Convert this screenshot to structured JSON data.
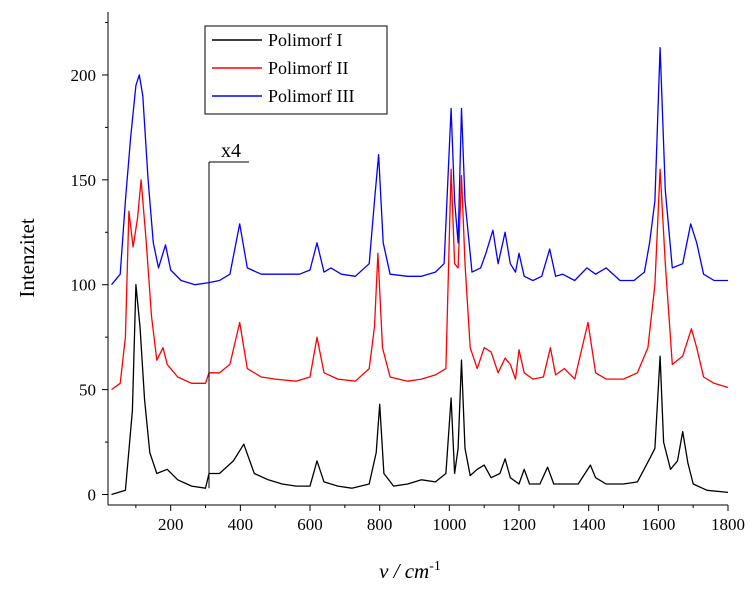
{
  "chart_data": {
    "type": "line",
    "title": "",
    "xlabel": "ν / cm",
    "xlabel_sup": "-1",
    "ylabel": "Intenzitet",
    "xlim": [
      20,
      1800
    ],
    "ylim": [
      -5,
      230
    ],
    "xticks": [
      200,
      400,
      600,
      800,
      1000,
      1200,
      1400,
      1600,
      1800
    ],
    "yticks": [
      0,
      50,
      100,
      150,
      200
    ],
    "grid": false,
    "legend_position": "top-left",
    "annotation": {
      "text": "x4",
      "x": 310
    },
    "series": [
      {
        "name": "Polimorf I",
        "color": "#000000",
        "points": [
          [
            30,
            0
          ],
          [
            70,
            2
          ],
          [
            90,
            40
          ],
          [
            100,
            100
          ],
          [
            112,
            80
          ],
          [
            125,
            45
          ],
          [
            140,
            20
          ],
          [
            160,
            10
          ],
          [
            190,
            12
          ],
          [
            220,
            7
          ],
          [
            260,
            4
          ],
          [
            300,
            3
          ],
          [
            310,
            10
          ],
          [
            340,
            10
          ],
          [
            380,
            16
          ],
          [
            410,
            24
          ],
          [
            440,
            10
          ],
          [
            480,
            7
          ],
          [
            520,
            5
          ],
          [
            560,
            4
          ],
          [
            600,
            4
          ],
          [
            620,
            16
          ],
          [
            640,
            6
          ],
          [
            680,
            4
          ],
          [
            720,
            3
          ],
          [
            770,
            5
          ],
          [
            790,
            20
          ],
          [
            800,
            43
          ],
          [
            812,
            10
          ],
          [
            840,
            4
          ],
          [
            880,
            5
          ],
          [
            920,
            7
          ],
          [
            960,
            6
          ],
          [
            990,
            10
          ],
          [
            1005,
            46
          ],
          [
            1015,
            10
          ],
          [
            1025,
            22
          ],
          [
            1035,
            64
          ],
          [
            1045,
            22
          ],
          [
            1060,
            9
          ],
          [
            1080,
            12
          ],
          [
            1100,
            14
          ],
          [
            1120,
            8
          ],
          [
            1145,
            10
          ],
          [
            1160,
            17
          ],
          [
            1175,
            8
          ],
          [
            1200,
            5
          ],
          [
            1215,
            12
          ],
          [
            1230,
            5
          ],
          [
            1260,
            5
          ],
          [
            1282,
            13
          ],
          [
            1300,
            5
          ],
          [
            1340,
            5
          ],
          [
            1370,
            5
          ],
          [
            1405,
            14
          ],
          [
            1420,
            8
          ],
          [
            1450,
            5
          ],
          [
            1500,
            5
          ],
          [
            1540,
            6
          ],
          [
            1575,
            17
          ],
          [
            1590,
            22
          ],
          [
            1605,
            66
          ],
          [
            1615,
            25
          ],
          [
            1635,
            12
          ],
          [
            1655,
            16
          ],
          [
            1670,
            30
          ],
          [
            1685,
            15
          ],
          [
            1700,
            5
          ],
          [
            1740,
            2
          ],
          [
            1800,
            1
          ]
        ]
      },
      {
        "name": "Polimorf II",
        "color": "#ff0000",
        "points": [
          [
            30,
            50
          ],
          [
            55,
            53
          ],
          [
            70,
            75
          ],
          [
            80,
            135
          ],
          [
            92,
            118
          ],
          [
            105,
            132
          ],
          [
            115,
            150
          ],
          [
            130,
            120
          ],
          [
            145,
            85
          ],
          [
            160,
            64
          ],
          [
            178,
            70
          ],
          [
            190,
            62
          ],
          [
            220,
            56
          ],
          [
            260,
            53
          ],
          [
            300,
            53
          ],
          [
            310,
            58
          ],
          [
            340,
            58
          ],
          [
            370,
            62
          ],
          [
            398,
            82
          ],
          [
            420,
            60
          ],
          [
            460,
            56
          ],
          [
            500,
            55
          ],
          [
            560,
            54
          ],
          [
            600,
            56
          ],
          [
            620,
            75
          ],
          [
            640,
            58
          ],
          [
            680,
            55
          ],
          [
            730,
            54
          ],
          [
            770,
            60
          ],
          [
            785,
            80
          ],
          [
            795,
            115
          ],
          [
            808,
            70
          ],
          [
            830,
            56
          ],
          [
            880,
            54
          ],
          [
            920,
            55
          ],
          [
            960,
            57
          ],
          [
            990,
            60
          ],
          [
            1005,
            155
          ],
          [
            1015,
            110
          ],
          [
            1025,
            108
          ],
          [
            1035,
            152
          ],
          [
            1045,
            110
          ],
          [
            1060,
            70
          ],
          [
            1080,
            60
          ],
          [
            1100,
            70
          ],
          [
            1120,
            68
          ],
          [
            1140,
            58
          ],
          [
            1160,
            65
          ],
          [
            1175,
            62
          ],
          [
            1190,
            55
          ],
          [
            1200,
            69
          ],
          [
            1215,
            58
          ],
          [
            1240,
            55
          ],
          [
            1270,
            56
          ],
          [
            1290,
            70
          ],
          [
            1305,
            57
          ],
          [
            1330,
            60
          ],
          [
            1360,
            55
          ],
          [
            1398,
            82
          ],
          [
            1420,
            58
          ],
          [
            1450,
            55
          ],
          [
            1500,
            55
          ],
          [
            1540,
            58
          ],
          [
            1570,
            70
          ],
          [
            1590,
            100
          ],
          [
            1605,
            155
          ],
          [
            1620,
            110
          ],
          [
            1640,
            62
          ],
          [
            1670,
            66
          ],
          [
            1695,
            79
          ],
          [
            1710,
            70
          ],
          [
            1730,
            56
          ],
          [
            1760,
            53
          ],
          [
            1800,
            51
          ]
        ]
      },
      {
        "name": "Polimorf III",
        "color": "#0000ff",
        "points": [
          [
            30,
            100
          ],
          [
            55,
            105
          ],
          [
            70,
            140
          ],
          [
            85,
            170
          ],
          [
            100,
            195
          ],
          [
            110,
            200
          ],
          [
            120,
            190
          ],
          [
            135,
            150
          ],
          [
            150,
            120
          ],
          [
            165,
            108
          ],
          [
            185,
            119
          ],
          [
            200,
            107
          ],
          [
            230,
            102
          ],
          [
            270,
            100
          ],
          [
            310,
            101
          ],
          [
            340,
            102
          ],
          [
            370,
            105
          ],
          [
            398,
            129
          ],
          [
            420,
            108
          ],
          [
            460,
            105
          ],
          [
            520,
            105
          ],
          [
            570,
            105
          ],
          [
            600,
            107
          ],
          [
            620,
            120
          ],
          [
            640,
            106
          ],
          [
            660,
            108
          ],
          [
            690,
            105
          ],
          [
            730,
            104
          ],
          [
            770,
            110
          ],
          [
            785,
            140
          ],
          [
            797,
            162
          ],
          [
            810,
            120
          ],
          [
            830,
            105
          ],
          [
            880,
            104
          ],
          [
            920,
            104
          ],
          [
            960,
            106
          ],
          [
            985,
            110
          ],
          [
            1005,
            184
          ],
          [
            1015,
            140
          ],
          [
            1025,
            120
          ],
          [
            1035,
            184
          ],
          [
            1045,
            140
          ],
          [
            1065,
            106
          ],
          [
            1090,
            108
          ],
          [
            1105,
            115
          ],
          [
            1125,
            126
          ],
          [
            1140,
            110
          ],
          [
            1160,
            125
          ],
          [
            1175,
            110
          ],
          [
            1190,
            106
          ],
          [
            1200,
            115
          ],
          [
            1215,
            104
          ],
          [
            1240,
            102
          ],
          [
            1265,
            104
          ],
          [
            1288,
            117
          ],
          [
            1305,
            104
          ],
          [
            1325,
            105
          ],
          [
            1360,
            102
          ],
          [
            1395,
            108
          ],
          [
            1420,
            105
          ],
          [
            1450,
            108
          ],
          [
            1490,
            102
          ],
          [
            1530,
            102
          ],
          [
            1560,
            106
          ],
          [
            1575,
            120
          ],
          [
            1590,
            140
          ],
          [
            1605,
            213
          ],
          [
            1620,
            145
          ],
          [
            1640,
            108
          ],
          [
            1670,
            110
          ],
          [
            1693,
            129
          ],
          [
            1710,
            120
          ],
          [
            1730,
            105
          ],
          [
            1760,
            102
          ],
          [
            1800,
            102
          ]
        ]
      }
    ]
  }
}
